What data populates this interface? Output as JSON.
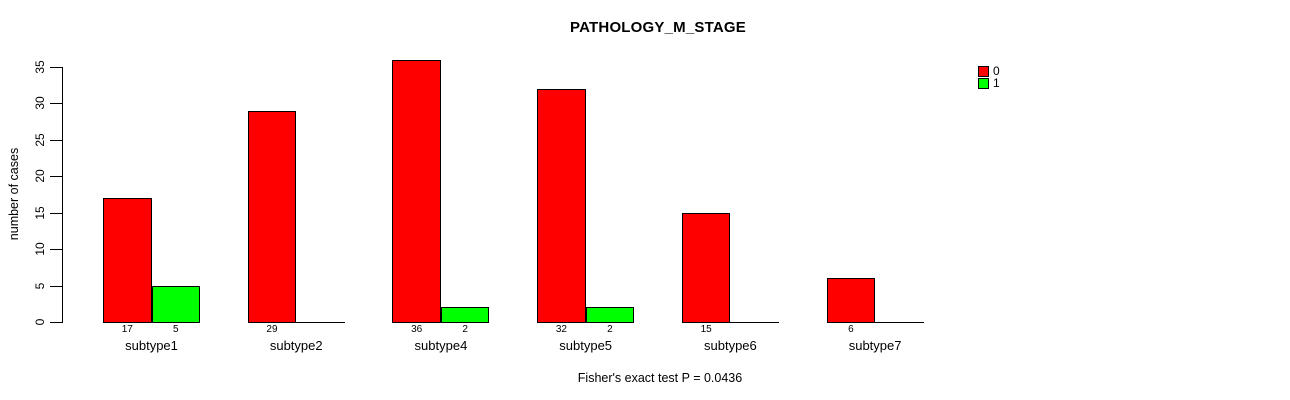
{
  "chart_data": {
    "type": "bar",
    "title": "PATHOLOGY_M_STAGE",
    "ylabel": "number of cases",
    "xlabel": "",
    "categories": [
      "subtype1",
      "subtype2",
      "subtype4",
      "subtype5",
      "subtype6",
      "subtype7"
    ],
    "series": [
      {
        "name": "0",
        "color": "#ff0000",
        "values": [
          17,
          29,
          36,
          32,
          15,
          6
        ]
      },
      {
        "name": "1",
        "color": "#00ff00",
        "values": [
          5,
          0,
          2,
          2,
          0,
          0
        ]
      }
    ],
    "yticks": [
      0,
      5,
      10,
      15,
      20,
      25,
      30,
      35
    ],
    "ylim": [
      0,
      35
    ],
    "grid": false,
    "bar_border_color": "#000000",
    "value_labels": "nonzero bar values printed below baseline under each bar",
    "legend": {
      "position": "top-right",
      "entries": [
        {
          "label": "0",
          "color": "#ff0000"
        },
        {
          "label": "1",
          "color": "#00ff00"
        }
      ]
    },
    "annotation": "Fisher's exact test P = 0.0436"
  }
}
